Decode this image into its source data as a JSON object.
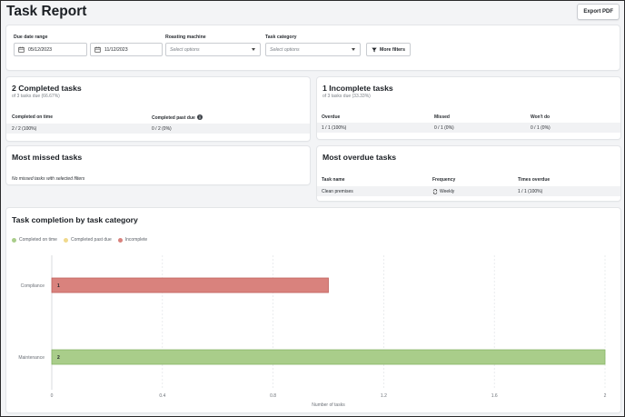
{
  "header": {
    "title": "Task Report",
    "export_label": "Export PDF"
  },
  "filters": {
    "due_date_label": "Due date range",
    "start_date": "05/12/2023",
    "end_date": "11/12/2023",
    "machine_label": "Roasting machine",
    "machine_placeholder": "Select options",
    "category_label": "Task category",
    "category_placeholder": "Select options",
    "more_filters_label": "More filters"
  },
  "completed": {
    "title": "2 Completed tasks",
    "subtitle": "of 3 tasks due (66.67%)",
    "columns": [
      "Completed on time",
      "Completed past due"
    ],
    "values": [
      "2 / 2 (100%)",
      "0 / 2 (0%)"
    ]
  },
  "incomplete": {
    "title": "1 Incomplete tasks",
    "subtitle": "of 3 tasks due (33.33%)",
    "columns": [
      "Overdue",
      "Missed",
      "Won't do"
    ],
    "values": [
      "1 / 1 (100%)",
      "0 / 1 (0%)",
      "0 / 1 (0%)"
    ]
  },
  "missed": {
    "title": "Most missed tasks",
    "empty_message": "No missed tasks with selected filters"
  },
  "overdue": {
    "title": "Most overdue tasks",
    "columns": [
      "Task name",
      "Frequency",
      "Times overdue"
    ],
    "rows": [
      {
        "task_name": "Clean premises",
        "frequency": "Weekly",
        "times_overdue": "1 / 1 (100%)"
      }
    ]
  },
  "chart_section": {
    "title": "Task completion by task category",
    "legend": [
      "Completed on time",
      "Completed past due",
      "Incomplete"
    ]
  },
  "chart_data": {
    "type": "bar",
    "orientation": "horizontal",
    "stacked": true,
    "title": "Task completion by task category",
    "xlabel": "Number of tasks",
    "ylabel": "",
    "categories": [
      "Compliance",
      "Maintenance"
    ],
    "series": [
      {
        "name": "Completed on time",
        "color": "#a9cd8a",
        "values": [
          0,
          2
        ]
      },
      {
        "name": "Completed past due",
        "color": "#f0d98c",
        "values": [
          0,
          0
        ]
      },
      {
        "name": "Incomplete",
        "color": "#d9827d",
        "values": [
          1,
          0
        ]
      }
    ],
    "xlim": [
      0,
      2
    ],
    "xticks": [
      "0",
      "0.4",
      "0.8",
      "1.2",
      "1.6",
      "2"
    ],
    "grid": true,
    "legend_position": "top-left"
  },
  "colors": {
    "completed_on_time": "#a9cd8a",
    "completed_past_due": "#f0d98c",
    "incomplete": "#d9827d",
    "bar_border_incomplete": "#c0625d",
    "bar_border_completed": "#86b465"
  },
  "icons": {
    "calendar": "calendar-icon",
    "filter": "filter-icon",
    "info": "info-icon",
    "recurrence": "repeat-icon"
  }
}
